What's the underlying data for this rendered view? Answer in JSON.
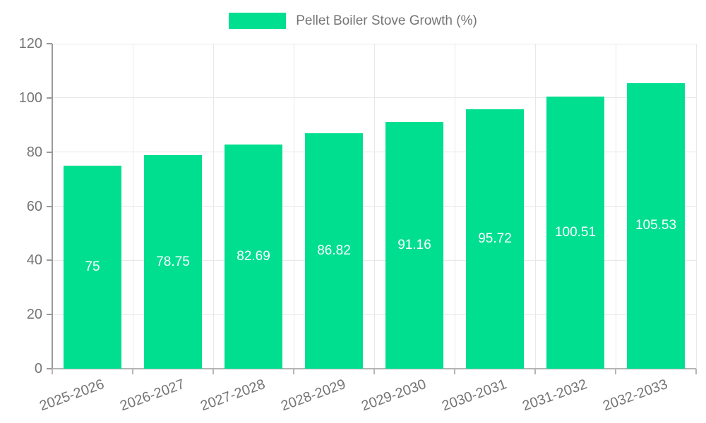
{
  "chart_data": {
    "type": "bar",
    "title": "",
    "legend": {
      "label": "Pellet Boiler Stove Growth (%)",
      "position": "top"
    },
    "categories": [
      "2025-2026",
      "2026-2027",
      "2027-2028",
      "2028-2029",
      "2029-2030",
      "2030-2031",
      "2031-2032",
      "2032-2033"
    ],
    "series": [
      {
        "name": "Pellet Boiler Stove Growth (%)",
        "values": [
          75,
          78.75,
          82.69,
          86.82,
          91.16,
          95.72,
          100.51,
          105.53
        ],
        "value_labels": [
          "75",
          "78.75",
          "82.69",
          "86.82",
          "91.16",
          "95.72",
          "100.51",
          "105.53"
        ]
      }
    ],
    "xlabel": "",
    "ylabel": "",
    "ylim": [
      0,
      120
    ],
    "y_ticks": [
      0,
      20,
      40,
      60,
      80,
      100,
      120
    ],
    "grid": true,
    "colors": {
      "bar": "#00df90",
      "bar_value_text": "#ffffff",
      "axis_text": "#757575",
      "grid_line": "#e8e8e8",
      "y_axis_line": "#9a9a9a",
      "x_axis_line": "#b5b5b5"
    }
  }
}
